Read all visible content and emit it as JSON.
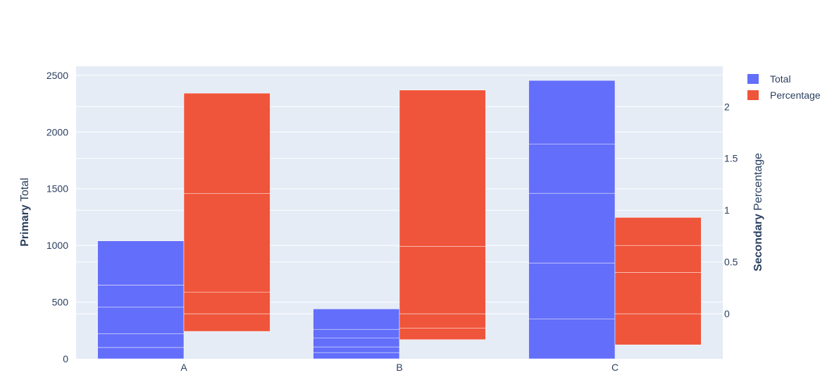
{
  "chart_data": {
    "type": "bar",
    "categories": [
      "A",
      "B",
      "C"
    ],
    "y_axis": {
      "title_bold": "Primary",
      "title_rest": " Total",
      "range": [
        0,
        2580
      ],
      "tick_values": [
        0,
        500,
        1000,
        1500,
        2000,
        2500
      ],
      "tick_labels": [
        "0",
        "500",
        "1000",
        "1500",
        "2000",
        "2500"
      ]
    },
    "y2_axis": {
      "title_bold": "Secondary",
      "title_rest": " Percentage",
      "range": [
        -0.435,
        2.39
      ],
      "tick_values": [
        0,
        0.5,
        1,
        1.5,
        2
      ],
      "tick_labels": [
        "0",
        "0.5",
        "1",
        "1.5",
        "2"
      ]
    },
    "grid": true,
    "legend_position": "top-right",
    "series": [
      {
        "name": "Total",
        "axis": "y",
        "color": "#636efa",
        "segments": [
          [
            {
              "from": 0,
              "to": 100
            },
            {
              "from": 100,
              "to": 220
            },
            {
              "from": 220,
              "to": 455
            },
            {
              "from": 455,
              "to": 650
            },
            {
              "from": 650,
              "to": 1040
            }
          ],
          [
            {
              "from": 0,
              "to": 55
            },
            {
              "from": 55,
              "to": 105
            },
            {
              "from": 105,
              "to": 185
            },
            {
              "from": 185,
              "to": 260
            },
            {
              "from": 260,
              "to": 440
            }
          ],
          [
            {
              "from": 0,
              "to": 350
            },
            {
              "from": 350,
              "to": 845
            },
            {
              "from": 845,
              "to": 1460
            },
            {
              "from": 1460,
              "to": 1895
            },
            {
              "from": 1895,
              "to": 2455
            }
          ]
        ]
      },
      {
        "name": "Percentage",
        "axis": "y2",
        "color": "#ef553b",
        "segments": [
          [
            {
              "from": -0.17,
              "to": 0
            },
            {
              "from": 0,
              "to": 0.21
            },
            {
              "from": 0.21,
              "to": 1.16
            },
            {
              "from": 1.16,
              "to": 2.13
            }
          ],
          [
            {
              "from": -0.25,
              "to": -0.14
            },
            {
              "from": -0.14,
              "to": 0
            },
            {
              "from": 0,
              "to": 0.65
            },
            {
              "from": 0.65,
              "to": 2.16
            }
          ],
          [
            {
              "from": -0.3,
              "to": 0
            },
            {
              "from": 0,
              "to": 0.4
            },
            {
              "from": 0.4,
              "to": 0.66
            },
            {
              "from": 0.66,
              "to": 0.93
            }
          ]
        ]
      }
    ]
  }
}
